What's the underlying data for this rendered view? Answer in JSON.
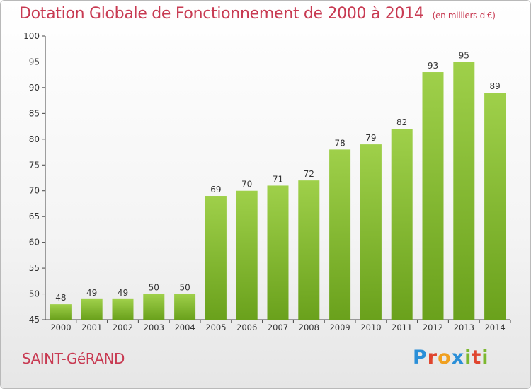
{
  "header": {
    "title": "Dotation Globale de Fonctionnement de 2000 à 2014",
    "subtitle": "(en milliers d'€)"
  },
  "footer": {
    "commune": "SAINT-GéRAND",
    "brand": "Proxiti",
    "brand_colors": [
      "#2a8fd8",
      "#e0452e",
      "#f0a020",
      "#2a8fd8",
      "#7cb82f",
      "#e0452e",
      "#7cb82f"
    ]
  },
  "colors": {
    "bar_top": "#9fd04a",
    "bar_bottom": "#6aa11c",
    "axis": "#444444",
    "grid": "#dddddd"
  },
  "chart_data": {
    "type": "bar",
    "title": "Dotation Globale de Fonctionnement de 2000 à 2014",
    "subtitle": "(en milliers d'€)",
    "categories": [
      "2000",
      "2001",
      "2002",
      "2003",
      "2004",
      "2005",
      "2006",
      "2007",
      "2008",
      "2009",
      "2010",
      "2011",
      "2012",
      "2013",
      "2014"
    ],
    "values": [
      48,
      49,
      49,
      50,
      50,
      69,
      70,
      71,
      72,
      78,
      79,
      82,
      93,
      95,
      89
    ],
    "ylim": [
      45,
      100
    ],
    "yticks": [
      45,
      50,
      55,
      60,
      65,
      70,
      75,
      80,
      85,
      90,
      95,
      100
    ],
    "grid": false,
    "data_labels": true
  }
}
